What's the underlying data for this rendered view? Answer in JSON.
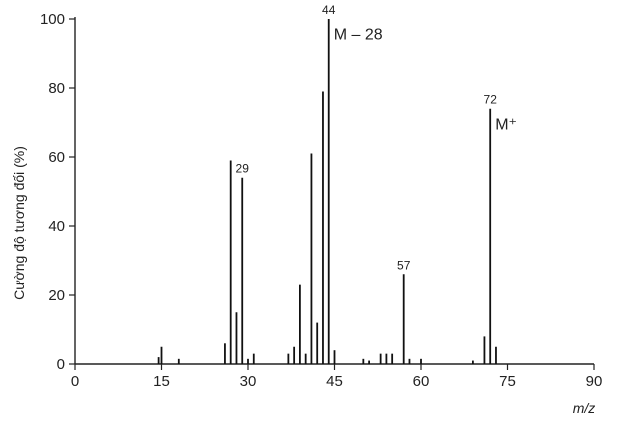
{
  "chart_data": {
    "type": "bar",
    "xlabel": "m/z",
    "ylabel": "Cường độ tương đối (%)",
    "xlim": [
      0,
      90
    ],
    "ylim": [
      0,
      100
    ],
    "xticks": [
      0,
      15,
      30,
      45,
      60,
      75,
      90
    ],
    "yticks": [
      0,
      20,
      40,
      60,
      80,
      100
    ],
    "grid": false,
    "peaks": [
      {
        "x": 14.5,
        "y": 2
      },
      {
        "x": 15,
        "y": 5
      },
      {
        "x": 18,
        "y": 1.5
      },
      {
        "x": 26,
        "y": 6
      },
      {
        "x": 27,
        "y": 59
      },
      {
        "x": 28,
        "y": 15
      },
      {
        "x": 29,
        "y": 54
      },
      {
        "x": 30,
        "y": 1.5
      },
      {
        "x": 31,
        "y": 3
      },
      {
        "x": 37,
        "y": 3
      },
      {
        "x": 38,
        "y": 5
      },
      {
        "x": 39,
        "y": 23
      },
      {
        "x": 40,
        "y": 3
      },
      {
        "x": 41,
        "y": 61
      },
      {
        "x": 42,
        "y": 12
      },
      {
        "x": 43,
        "y": 79
      },
      {
        "x": 44,
        "y": 100
      },
      {
        "x": 45,
        "y": 4
      },
      {
        "x": 50,
        "y": 1.5
      },
      {
        "x": 51,
        "y": 1
      },
      {
        "x": 53,
        "y": 3
      },
      {
        "x": 54,
        "y": 3
      },
      {
        "x": 55,
        "y": 3
      },
      {
        "x": 57,
        "y": 26
      },
      {
        "x": 58,
        "y": 1.5
      },
      {
        "x": 60,
        "y": 1.5
      },
      {
        "x": 69,
        "y": 1
      },
      {
        "x": 71,
        "y": 8
      },
      {
        "x": 72,
        "y": 74
      },
      {
        "x": 73,
        "y": 5
      }
    ],
    "peak_labels": [
      {
        "x": 29,
        "y": 54,
        "text": "29"
      },
      {
        "x": 44,
        "y": 100,
        "text": "44"
      },
      {
        "x": 57,
        "y": 26,
        "text": "57"
      },
      {
        "x": 72,
        "y": 74,
        "text": "72"
      }
    ],
    "annotations": [
      {
        "x": 44,
        "y": 94,
        "text": "M – 28"
      },
      {
        "x": 72,
        "y": 68,
        "text": "M⁺"
      }
    ]
  }
}
